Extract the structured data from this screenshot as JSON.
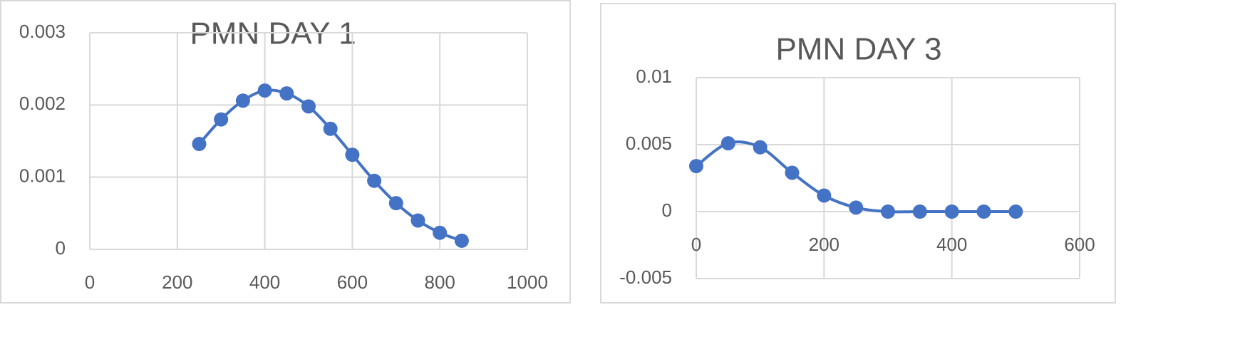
{
  "chart_data": [
    {
      "type": "line",
      "title": "PMN DAY 1",
      "smooth": true,
      "grid": true,
      "x": [
        250,
        300,
        350,
        400,
        450,
        500,
        550,
        600,
        650,
        700,
        750,
        800,
        850
      ],
      "series": [
        {
          "color": "#4472c4",
          "values": [
            0.00146,
            0.0018,
            0.00206,
            0.0022,
            0.00216,
            0.00198,
            0.00167,
            0.00131,
            0.00095,
            0.00064,
            0.0004,
            0.00023,
            0.00012
          ]
        }
      ],
      "xlim": [
        0,
        1000
      ],
      "xticks": [
        0,
        200,
        400,
        600,
        800,
        1000
      ],
      "ylim": [
        0,
        0.003
      ],
      "yticks": [
        0,
        0.001,
        0.002,
        0.003
      ]
    },
    {
      "type": "line",
      "title": "PMN DAY 3",
      "smooth": true,
      "grid": true,
      "x": [
        0,
        50,
        100,
        150,
        200,
        250,
        300,
        350,
        400,
        450,
        500
      ],
      "series": [
        {
          "color": "#4472c4",
          "values": [
            0.0034,
            0.0051,
            0.0048,
            0.0029,
            0.0012,
            0.0003,
            0,
            0,
            0,
            0,
            0
          ]
        }
      ],
      "xlim": [
        0,
        600
      ],
      "xticks": [
        0,
        200,
        400,
        600
      ],
      "ylim": [
        -0.005,
        0.01
      ],
      "yticks": [
        -0.005,
        0,
        0.005,
        0.01
      ]
    }
  ]
}
